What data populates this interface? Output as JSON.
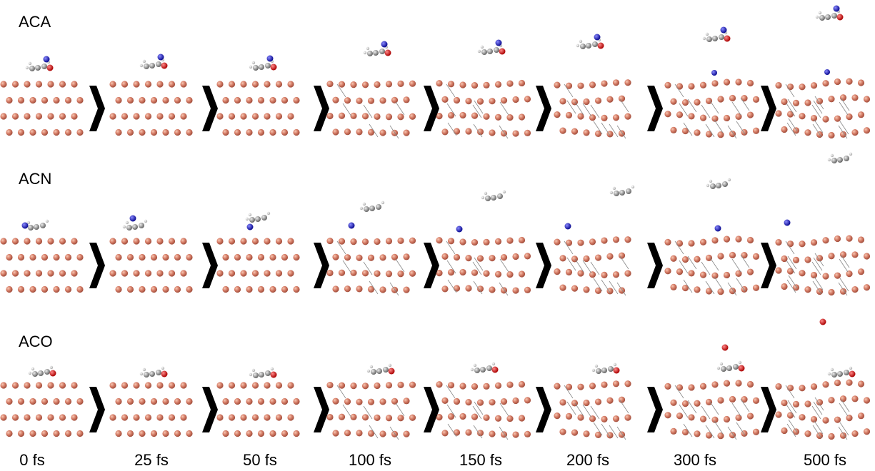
{
  "rows": [
    {
      "label": "ACA"
    },
    {
      "label": "ACN"
    },
    {
      "label": "ACO"
    }
  ],
  "times": [
    "0 fs",
    "25 fs",
    "50 fs",
    "100 fs",
    "150 fs",
    "200 fs",
    "300 fs",
    "500 fs"
  ]
}
